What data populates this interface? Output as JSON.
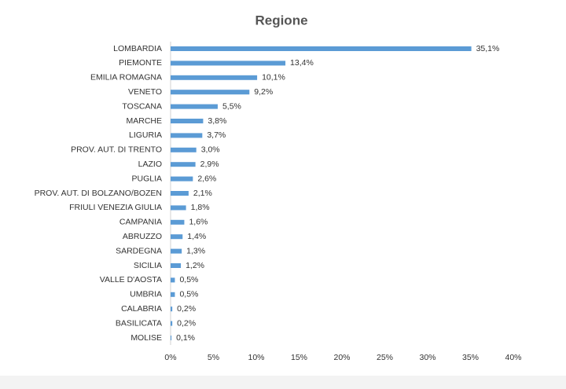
{
  "chart_data": {
    "type": "bar",
    "orientation": "horizontal",
    "title": "Regione",
    "categories": [
      "LOMBARDIA",
      "PIEMONTE",
      "EMILIA ROMAGNA",
      "VENETO",
      "TOSCANA",
      "MARCHE",
      "LIGURIA",
      "PROV. AUT. DI TRENTO",
      "LAZIO",
      "PUGLIA",
      "PROV. AUT. DI BOLZANO/BOZEN",
      "FRIULI VENEZIA GIULIA",
      "CAMPANIA",
      "ABRUZZO",
      "SARDEGNA",
      "SICILIA",
      "VALLE D'AOSTA",
      "UMBRIA",
      "CALABRIA",
      "BASILICATA",
      "MOLISE"
    ],
    "values": [
      35.1,
      13.4,
      10.1,
      9.2,
      5.5,
      3.8,
      3.7,
      3.0,
      2.9,
      2.6,
      2.1,
      1.8,
      1.6,
      1.4,
      1.3,
      1.2,
      0.5,
      0.5,
      0.2,
      0.2,
      0.1
    ],
    "value_labels": [
      "35,1%",
      "13,4%",
      "10,1%",
      "9,2%",
      "5,5%",
      "3,8%",
      "3,7%",
      "3,0%",
      "2,9%",
      "2,6%",
      "2,1%",
      "1,8%",
      "1,6%",
      "1,4%",
      "1,3%",
      "1,2%",
      "0,5%",
      "0,5%",
      "0,2%",
      "0,2%",
      "0,1%"
    ],
    "color": "#5b9bd5",
    "xlim": [
      0,
      40
    ],
    "xticks": [
      {
        "value": 0,
        "label": "0%"
      },
      {
        "value": 5,
        "label": "5%"
      },
      {
        "value": 10,
        "label": "10%"
      },
      {
        "value": 15,
        "label": "15%"
      },
      {
        "value": 20,
        "label": "20%"
      },
      {
        "value": 25,
        "label": "25%"
      },
      {
        "value": 30,
        "label": "30%"
      },
      {
        "value": 35,
        "label": "35%"
      },
      {
        "value": 40,
        "label": "40%"
      }
    ],
    "grid": false
  }
}
